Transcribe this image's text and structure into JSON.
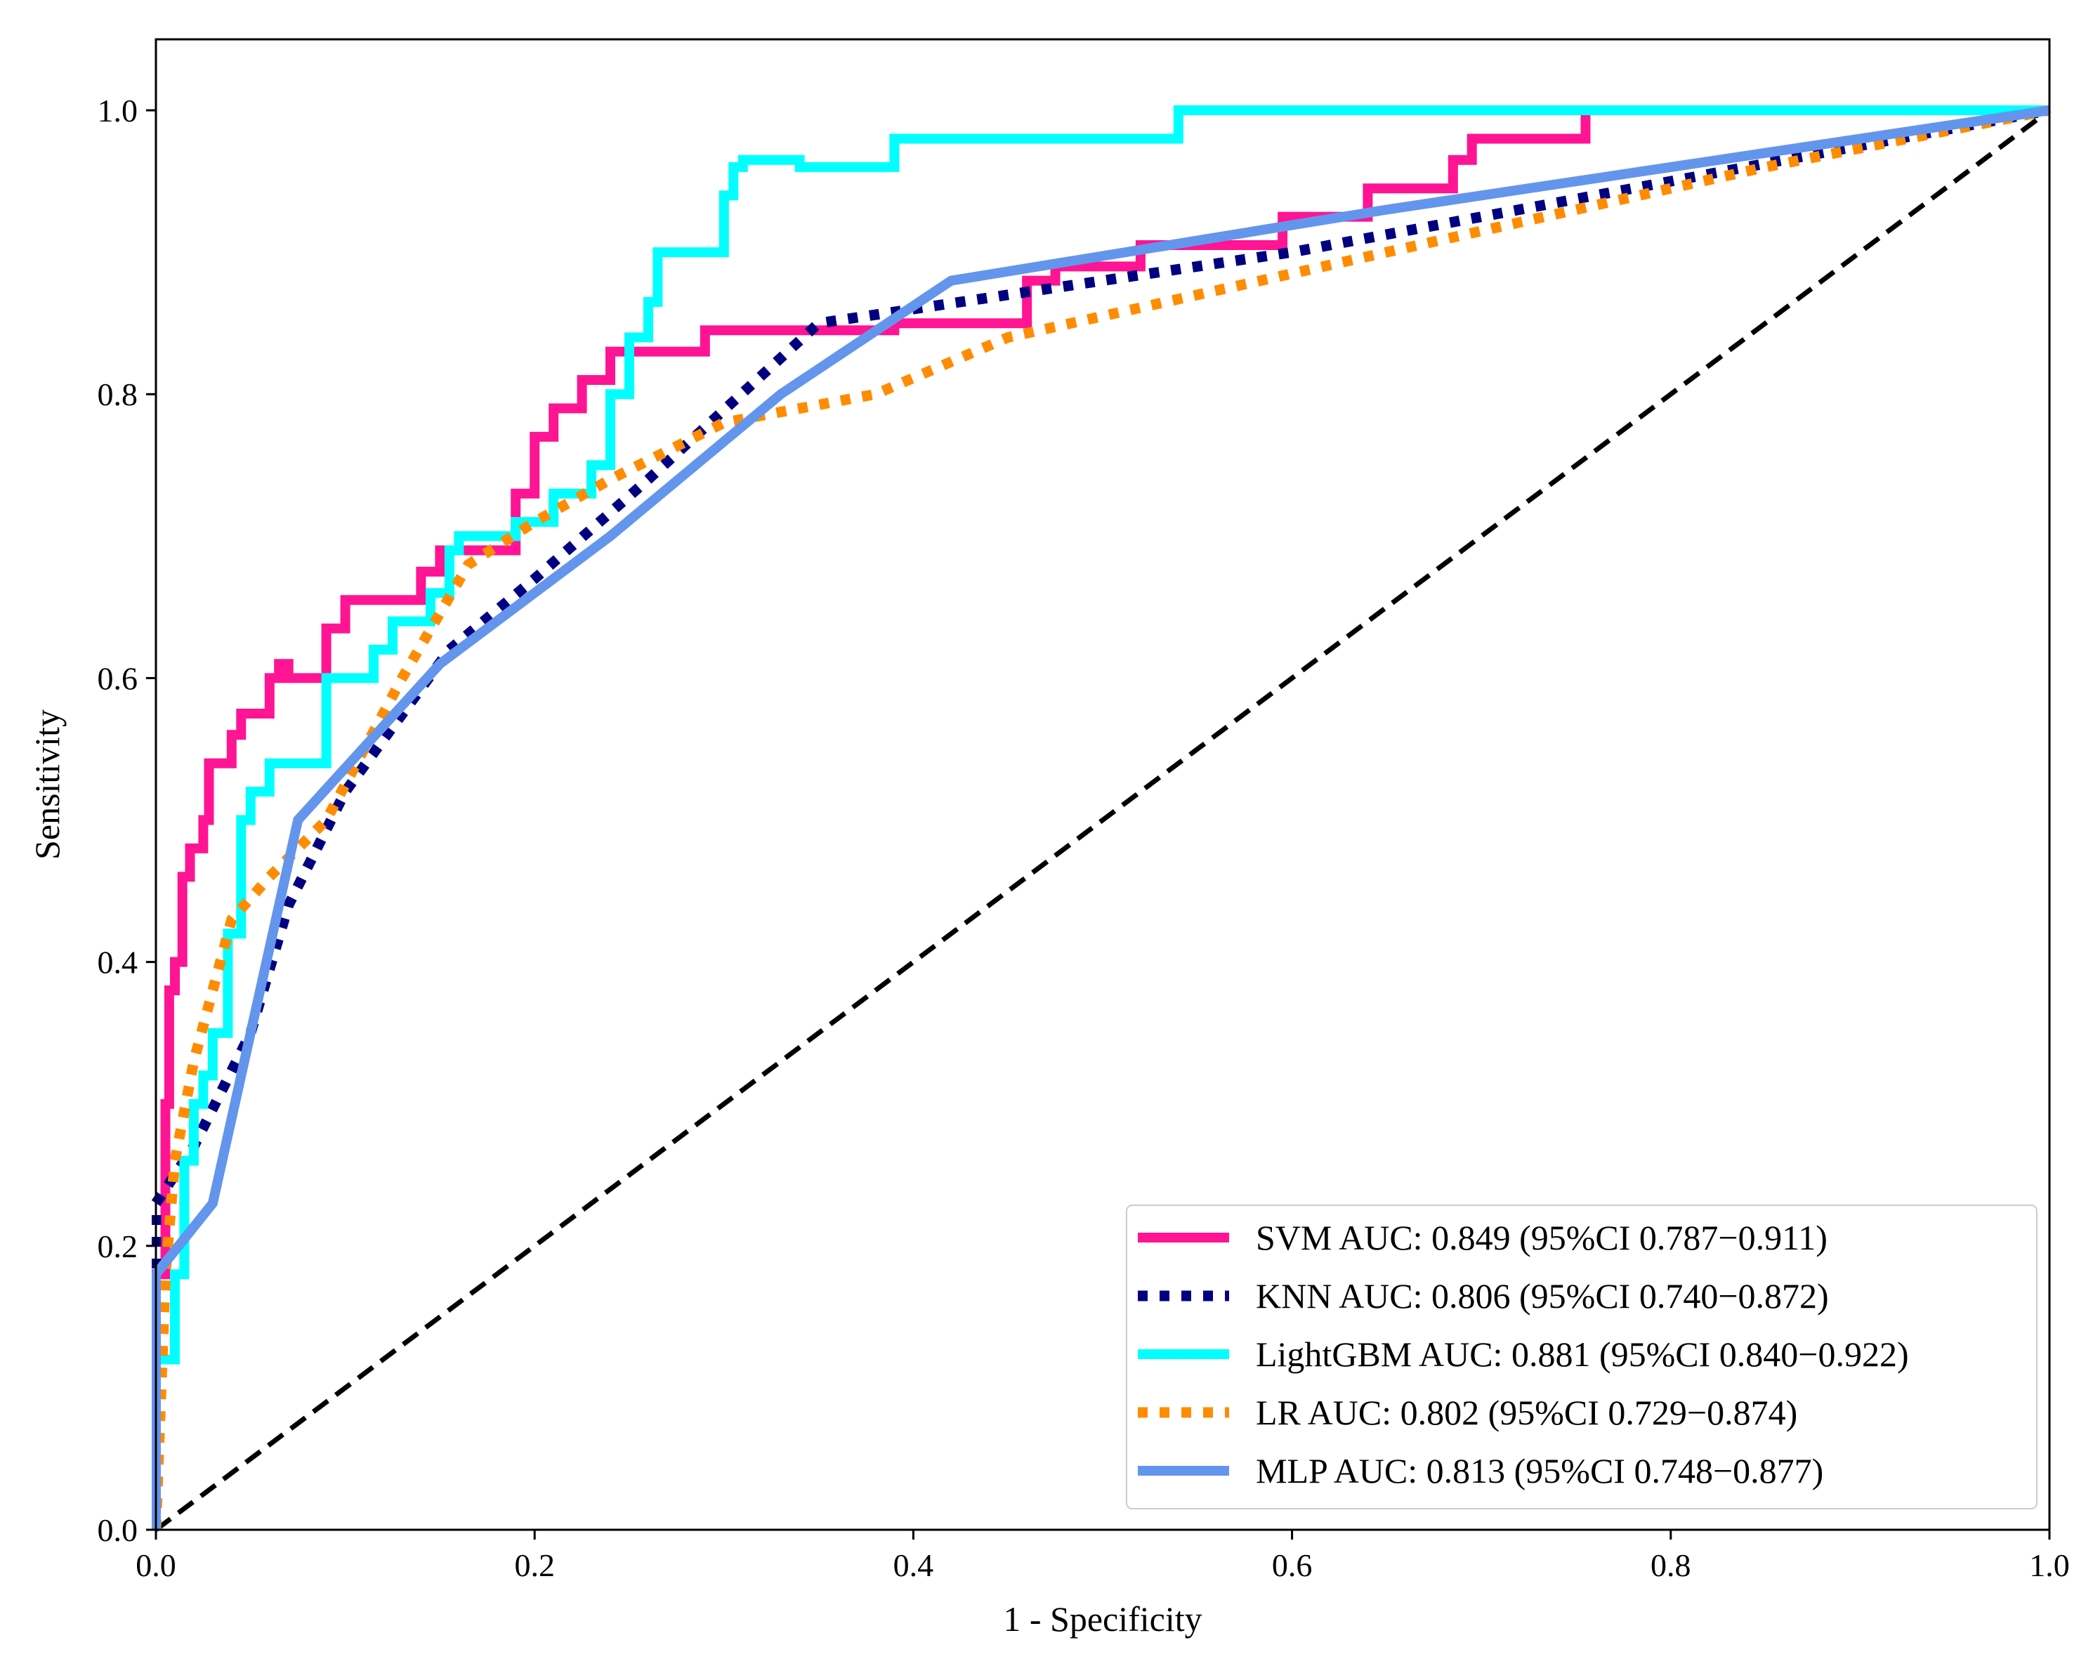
{
  "chart_data": {
    "type": "line",
    "title": "",
    "xlabel": "1 - Specificity",
    "ylabel": "Sensitivity",
    "xlim": [
      0.0,
      1.0
    ],
    "ylim": [
      0.0,
      1.05
    ],
    "xticks": [
      "0.0",
      "0.2",
      "0.4",
      "0.6",
      "0.8",
      "1.0"
    ],
    "yticks": [
      "0.0",
      "0.2",
      "0.4",
      "0.6",
      "0.8",
      "1.0"
    ],
    "xtick_values": [
      0.0,
      0.2,
      0.4,
      0.6,
      0.8,
      1.0
    ],
    "ytick_values": [
      0.0,
      0.2,
      0.4,
      0.6,
      0.8,
      1.0
    ],
    "grid": false,
    "legend_position": "bottom-right",
    "reference_line": {
      "name": "chance",
      "x": [
        0,
        1
      ],
      "y": [
        0,
        1
      ],
      "color": "#000000",
      "style": "dashed"
    },
    "series": [
      {
        "name": "SVM",
        "legend": "SVM AUC: 0.849 (95%CI 0.787−0.911)",
        "color": "#FF1493",
        "style": "solid",
        "x": [
          0.0,
          0.0,
          0.005,
          0.005,
          0.007,
          0.007,
          0.01,
          0.01,
          0.014,
          0.014,
          0.018,
          0.018,
          0.025,
          0.025,
          0.028,
          0.028,
          0.04,
          0.04,
          0.045,
          0.045,
          0.06,
          0.06,
          0.065,
          0.065,
          0.07,
          0.07,
          0.09,
          0.09,
          0.1,
          0.1,
          0.14,
          0.14,
          0.15,
          0.15,
          0.19,
          0.19,
          0.2,
          0.2,
          0.21,
          0.21,
          0.225,
          0.225,
          0.24,
          0.24,
          0.29,
          0.29,
          0.39,
          0.39,
          0.46,
          0.46,
          0.475,
          0.475,
          0.52,
          0.52,
          0.595,
          0.595,
          0.64,
          0.64,
          0.685,
          0.685,
          0.695,
          0.695,
          0.755,
          0.755,
          1.0
        ],
        "y": [
          0.0,
          0.18,
          0.18,
          0.3,
          0.3,
          0.38,
          0.38,
          0.4,
          0.4,
          0.46,
          0.46,
          0.48,
          0.48,
          0.5,
          0.5,
          0.54,
          0.54,
          0.56,
          0.56,
          0.575,
          0.575,
          0.6,
          0.6,
          0.61,
          0.61,
          0.6,
          0.6,
          0.635,
          0.635,
          0.655,
          0.655,
          0.675,
          0.675,
          0.69,
          0.69,
          0.73,
          0.73,
          0.77,
          0.77,
          0.79,
          0.79,
          0.81,
          0.81,
          0.83,
          0.83,
          0.845,
          0.845,
          0.85,
          0.85,
          0.88,
          0.88,
          0.89,
          0.89,
          0.905,
          0.905,
          0.925,
          0.925,
          0.945,
          0.945,
          0.965,
          0.965,
          0.98,
          0.98,
          1.0,
          1.0
        ]
      },
      {
        "name": "KNN",
        "legend": "KNN AUC: 0.806 (95%CI 0.740−0.872)",
        "color": "#000080",
        "style": "dotted",
        "x": [
          0.0,
          0.0,
          0.02,
          0.05,
          0.07,
          0.1,
          0.155,
          0.2,
          0.26,
          0.35,
          0.4,
          0.6,
          0.8,
          1.0
        ],
        "y": [
          0.0,
          0.23,
          0.27,
          0.35,
          0.44,
          0.52,
          0.62,
          0.67,
          0.74,
          0.85,
          0.86,
          0.9,
          0.95,
          1.0
        ]
      },
      {
        "name": "LightGBM",
        "legend": "LightGBM AUC: 0.881 (95%CI 0.840−0.922)",
        "color": "#00FFFF",
        "style": "solid",
        "x": [
          0.0,
          0.0,
          0.01,
          0.01,
          0.015,
          0.015,
          0.02,
          0.02,
          0.025,
          0.025,
          0.03,
          0.03,
          0.038,
          0.038,
          0.045,
          0.045,
          0.05,
          0.05,
          0.06,
          0.06,
          0.09,
          0.09,
          0.115,
          0.115,
          0.125,
          0.125,
          0.145,
          0.145,
          0.155,
          0.155,
          0.16,
          0.16,
          0.19,
          0.19,
          0.21,
          0.21,
          0.23,
          0.23,
          0.24,
          0.24,
          0.25,
          0.25,
          0.26,
          0.26,
          0.265,
          0.265,
          0.3,
          0.3,
          0.305,
          0.305,
          0.31,
          0.31,
          0.34,
          0.34,
          0.39,
          0.39,
          0.54,
          0.54,
          1.0
        ],
        "y": [
          0.0,
          0.12,
          0.12,
          0.18,
          0.18,
          0.26,
          0.26,
          0.3,
          0.3,
          0.32,
          0.32,
          0.35,
          0.35,
          0.42,
          0.42,
          0.5,
          0.5,
          0.52,
          0.52,
          0.54,
          0.54,
          0.6,
          0.6,
          0.62,
          0.62,
          0.64,
          0.64,
          0.66,
          0.66,
          0.69,
          0.69,
          0.7,
          0.7,
          0.71,
          0.71,
          0.73,
          0.73,
          0.75,
          0.75,
          0.8,
          0.8,
          0.84,
          0.84,
          0.865,
          0.865,
          0.9,
          0.9,
          0.94,
          0.94,
          0.96,
          0.96,
          0.965,
          0.965,
          0.96,
          0.96,
          0.98,
          0.98,
          1.0,
          1.0
        ]
      },
      {
        "name": "LR",
        "legend": "LR AUC: 0.802 (95%CI 0.729−0.874)",
        "color": "#FF8C00",
        "style": "dotted",
        "x": [
          0.0,
          0.005,
          0.01,
          0.02,
          0.04,
          0.06,
          0.09,
          0.13,
          0.165,
          0.2,
          0.24,
          0.3,
          0.38,
          0.45,
          0.55,
          0.65,
          0.75,
          0.85,
          1.0
        ],
        "y": [
          0.0,
          0.18,
          0.26,
          0.33,
          0.43,
          0.46,
          0.5,
          0.6,
          0.68,
          0.71,
          0.74,
          0.78,
          0.8,
          0.84,
          0.87,
          0.9,
          0.93,
          0.96,
          1.0
        ]
      },
      {
        "name": "MLP",
        "legend": "MLP AUC: 0.813 (95%CI 0.748−0.877)",
        "color": "#6495ED",
        "style": "solid",
        "x": [
          0.0,
          0.0,
          0.03,
          0.075,
          0.15,
          0.24,
          0.33,
          0.42,
          0.65,
          0.85,
          1.0
        ],
        "y": [
          0.0,
          0.18,
          0.23,
          0.5,
          0.61,
          0.7,
          0.8,
          0.88,
          0.93,
          0.97,
          1.0
        ]
      }
    ]
  }
}
